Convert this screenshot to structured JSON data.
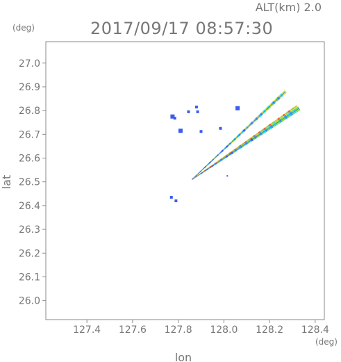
{
  "header": {
    "altitude_label": "ALT(km)  2.0",
    "datetime": "2017/09/17 08:57:30"
  },
  "chart_data": {
    "type": "scatter",
    "xlabel": "lon",
    "ylabel": "lat",
    "x_unit": "(deg)",
    "y_unit": "(deg)",
    "xlim": [
      127.22,
      128.44
    ],
    "ylim": [
      25.92,
      27.09
    ],
    "x_ticks": [
      127.4,
      127.6,
      127.8,
      128.0,
      128.2,
      128.4
    ],
    "x_tick_labels": [
      "127.4",
      "127.6",
      "127.8",
      "128.0",
      "128.2",
      "128.4"
    ],
    "y_ticks": [
      26.0,
      26.1,
      26.2,
      26.3,
      26.4,
      26.5,
      26.6,
      26.7,
      26.8,
      26.9,
      27.0
    ],
    "y_tick_labels": [
      "26.0",
      "26.1",
      "26.2",
      "26.3",
      "26.4",
      "26.5",
      "26.6",
      "26.7",
      "26.8",
      "26.9",
      "27.0"
    ],
    "grid": false,
    "colors": {
      "axis": "#8a8a8a",
      "blue": "#3a5cf0",
      "light_blue": "#35a4f2",
      "cyan": "#2ee0e8",
      "green": "#7de04a",
      "yellow": "#d8e040",
      "orange": "#f08a2a",
      "red": "#e03a2a"
    },
    "streaks": [
      {
        "name": "upper-streak",
        "start": [
          127.86,
          26.51
        ],
        "end": [
          128.27,
          26.88
        ],
        "width": 0.012,
        "colors": [
          "blue",
          "light_blue",
          "cyan",
          "green",
          "yellow"
        ]
      },
      {
        "name": "lower-streak",
        "start": [
          127.86,
          26.51
        ],
        "end": [
          128.33,
          26.81
        ],
        "width": 0.016,
        "colors": [
          "blue",
          "light_blue",
          "cyan",
          "green"
        ]
      },
      {
        "name": "middle-streak",
        "start": [
          127.86,
          26.51
        ],
        "end": [
          128.32,
          26.82
        ],
        "width": 0.006,
        "colors": [
          "orange",
          "red",
          "green",
          "yellow"
        ]
      }
    ],
    "clusters": [
      {
        "lon": 127.775,
        "lat": 26.775,
        "color": "blue",
        "size": 3
      },
      {
        "lon": 127.785,
        "lat": 26.768,
        "color": "blue",
        "size": 2
      },
      {
        "lon": 127.88,
        "lat": 26.815,
        "color": "blue",
        "size": 2
      },
      {
        "lon": 127.885,
        "lat": 26.795,
        "color": "blue",
        "size": 2
      },
      {
        "lon": 127.845,
        "lat": 26.795,
        "color": "blue",
        "size": 2
      },
      {
        "lon": 127.81,
        "lat": 26.715,
        "color": "blue",
        "size": 3
      },
      {
        "lon": 127.9,
        "lat": 26.712,
        "color": "blue",
        "size": 2
      },
      {
        "lon": 127.985,
        "lat": 26.725,
        "color": "blue",
        "size": 2
      },
      {
        "lon": 128.06,
        "lat": 26.81,
        "color": "blue",
        "size": 3
      },
      {
        "lon": 128.015,
        "lat": 26.525,
        "color": "blue",
        "size": 1
      },
      {
        "lon": 127.77,
        "lat": 26.435,
        "color": "blue",
        "size": 2
      },
      {
        "lon": 127.79,
        "lat": 26.42,
        "color": "blue",
        "size": 2
      }
    ]
  }
}
